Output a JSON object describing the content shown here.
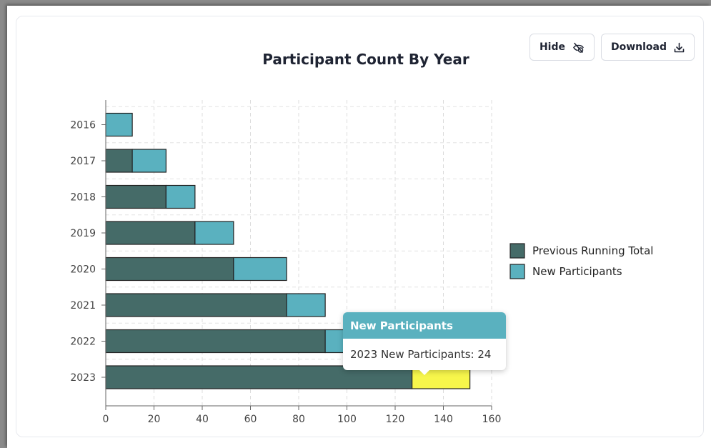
{
  "toolbar": {
    "hide_label": "Hide",
    "download_label": "Download"
  },
  "tooltip": {
    "title": "New Participants",
    "text": "2023 New Participants: 24"
  },
  "chart_data": {
    "type": "bar",
    "orientation": "horizontal",
    "stacked": true,
    "title": "Participant Count By Year",
    "xlabel": "",
    "ylabel": "",
    "categories": [
      "2016",
      "2017",
      "2018",
      "2019",
      "2020",
      "2021",
      "2022",
      "2023"
    ],
    "series": [
      {
        "name": "Previous Running Total",
        "color": "#456b68",
        "values": [
          0,
          11,
          25,
          37,
          53,
          75,
          91,
          127
        ]
      },
      {
        "name": "New Participants",
        "color": "#5ab1bf",
        "values": [
          11,
          14,
          12,
          16,
          22,
          16,
          36,
          24
        ]
      }
    ],
    "highlight": {
      "category": "2023",
      "series": "New Participants",
      "color": "#f7f64b"
    },
    "xlim": [
      0,
      160
    ],
    "xticks": [
      0,
      20,
      40,
      60,
      80,
      100,
      120,
      140,
      160
    ],
    "grid": true,
    "legend_position": "right"
  }
}
